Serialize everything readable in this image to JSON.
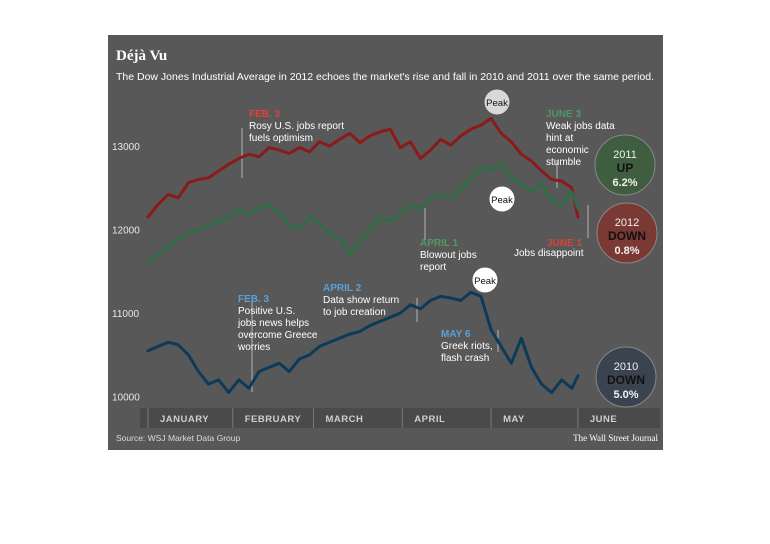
{
  "header": {
    "title": "Déjà Vu",
    "subtitle": "The Dow Jones Industrial Average in 2012 echoes the market's rise and fall in 2010 and 2011 over the same period."
  },
  "colors": {
    "background": "#585858",
    "axis_band": "#4a4a4a",
    "series_2012": "#8b1a1a",
    "series_2011": "#2f6e45",
    "series_2010": "#0e3a5a",
    "annotation_red": "#e0403a",
    "annotation_green": "#4f9a62",
    "annotation_blue": "#5aa0d8"
  },
  "chart_data": {
    "type": "line",
    "title": "Déjà Vu",
    "subtitle": "The Dow Jones Industrial Average in 2012 echoes the market's rise and fall in 2010 and 2011 over the same period.",
    "xlabel": "",
    "ylabel": "",
    "x_unit": "trading week",
    "xlim": [
      0,
      22
    ],
    "ylim": [
      9900,
      13550
    ],
    "y_ticks": [
      10000,
      11000,
      12000,
      13000
    ],
    "y_tick_labels": [
      "10000",
      "11000",
      "12000",
      "13000"
    ],
    "month_labels": [
      "JANUARY",
      "FEBRUARY",
      "MARCH",
      "APRIL",
      "MAY",
      "JUNE"
    ],
    "month_starts": [
      0,
      4.2,
      8.2,
      12.6,
      17,
      21.3
    ],
    "grid": false,
    "series": [
      {
        "name": "2012",
        "color": "#8b1a1a",
        "x": [
          0,
          0.5,
          1,
          1.5,
          2,
          2.5,
          3,
          3.5,
          4,
          4.5,
          5,
          5.5,
          6,
          6.5,
          7,
          7.5,
          8,
          8.5,
          9,
          9.5,
          10,
          10.5,
          11,
          11.5,
          12,
          12.5,
          13,
          13.5,
          14,
          14.5,
          15,
          15.5,
          16,
          16.5,
          17,
          17.5,
          18,
          18.5,
          19,
          19.5,
          20,
          20.5,
          21,
          21.3
        ],
        "y": [
          12150,
          12300,
          12420,
          12380,
          12560,
          12600,
          12620,
          12700,
          12780,
          12850,
          12900,
          12870,
          12980,
          12950,
          12910,
          12980,
          12930,
          13050,
          13000,
          13080,
          13150,
          13040,
          13120,
          13170,
          13200,
          12980,
          13050,
          12850,
          12950,
          13080,
          13010,
          13120,
          13200,
          13250,
          13330,
          13150,
          13050,
          12900,
          12820,
          12700,
          12600,
          12580,
          12500,
          12150
        ]
      },
      {
        "name": "2011",
        "color": "#2f6e45",
        "x": [
          0,
          0.5,
          1,
          1.5,
          2,
          2.5,
          3,
          3.5,
          4,
          4.5,
          5,
          5.5,
          6,
          6.5,
          7,
          7.5,
          8,
          8.5,
          9,
          9.5,
          10,
          10.5,
          11,
          11.5,
          12,
          12.5,
          13,
          13.5,
          14,
          14.5,
          15,
          15.5,
          16,
          16.5,
          17,
          17.5,
          18,
          18.5,
          19,
          19.5,
          20,
          20.5,
          21,
          21.3
        ],
        "y": [
          11600,
          11700,
          11800,
          11880,
          11950,
          12000,
          12050,
          12100,
          12150,
          12230,
          12180,
          12260,
          12300,
          12200,
          12050,
          12000,
          12150,
          12070,
          11950,
          11900,
          11700,
          11850,
          12000,
          12150,
          12100,
          12200,
          12300,
          12250,
          12380,
          12420,
          12370,
          12480,
          12600,
          12750,
          12700,
          12800,
          12620,
          12550,
          12450,
          12550,
          12350,
          12300,
          12450,
          12250
        ]
      },
      {
        "name": "2010",
        "color": "#0e3a5a",
        "x": [
          0,
          0.5,
          1,
          1.5,
          2,
          2.5,
          3,
          3.5,
          4,
          4.5,
          5,
          5.5,
          6,
          6.5,
          7,
          7.5,
          8,
          8.5,
          9,
          9.5,
          10,
          10.5,
          11,
          11.5,
          12,
          12.5,
          13,
          13.5,
          14,
          14.5,
          15,
          15.5,
          16,
          16.5,
          17,
          17.5,
          18,
          18.5,
          19,
          19.5,
          20,
          20.5,
          21,
          21.3
        ],
        "y": [
          10550,
          10600,
          10650,
          10620,
          10500,
          10300,
          10150,
          10200,
          10050,
          10200,
          10100,
          10300,
          10350,
          10400,
          10300,
          10450,
          10500,
          10600,
          10650,
          10700,
          10750,
          10780,
          10850,
          10900,
          10950,
          11000,
          11100,
          11050,
          11150,
          11200,
          11180,
          11150,
          11250,
          11200,
          10800,
          10600,
          10400,
          10700,
          10350,
          10150,
          10050,
          10200,
          10100,
          10250
        ]
      }
    ],
    "annotations": [
      {
        "id": "feb3_2012",
        "head": "FEB. 3",
        "lines": [
          "Rosy U.S. jobs report",
          "fuels optimism"
        ],
        "color": "#e0403a"
      },
      {
        "id": "june3_2011",
        "head": "JUNE 3",
        "lines": [
          "Weak jobs data",
          "hint at",
          "economic",
          "stumble"
        ],
        "color": "#4f9a62"
      },
      {
        "id": "april1_2012",
        "head": "APRIL 1",
        "lines": [
          "Blowout jobs",
          "report"
        ],
        "color": "#4f9a62"
      },
      {
        "id": "june1_2012",
        "head": "JUNE 1",
        "lines": [
          "Jobs disappoint"
        ],
        "color": "#e0403a"
      },
      {
        "id": "feb3_2010",
        "head": "FEB. 3",
        "lines": [
          "Positive U.S.",
          "jobs news helps",
          "overcome Greece",
          "worries"
        ],
        "color": "#5aa0d8"
      },
      {
        "id": "april2_2010",
        "head": "APRIL 2",
        "lines": [
          "Data show return",
          "to job creation"
        ],
        "color": "#5aa0d8"
      },
      {
        "id": "may6_2010",
        "head": "MAY 6",
        "lines": [
          "Greek riots,",
          "flash crash"
        ],
        "color": "#5aa0d8"
      }
    ],
    "peaks": [
      "Peak",
      "Peak",
      "Peak"
    ],
    "badges": [
      {
        "year": "2011",
        "dir": "UP",
        "pct": "6.2%",
        "fill": "#3f5d3f"
      },
      {
        "year": "2012",
        "dir": "DOWN",
        "pct": "0.8%",
        "fill": "#7a3a33"
      },
      {
        "year": "2010",
        "dir": "DOWN",
        "pct": "5.0%",
        "fill": "#3a4450"
      }
    ]
  },
  "footer": {
    "source": "Source: WSJ Market Data Group",
    "credit": "The Wall Street Journal"
  }
}
